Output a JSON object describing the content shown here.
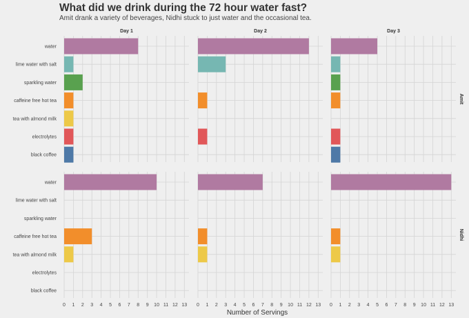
{
  "chart_data": {
    "type": "bar",
    "orientation": "horizontal",
    "title": "What did we drink during the 72 hour water fast?",
    "subtitle": "Amit drank a variety of beverages, Nidhi stuck to just water and the occasional tea.",
    "xlabel": "Number of Servings",
    "xlim": [
      0,
      13.5
    ],
    "x_ticks": [
      0,
      1,
      2,
      3,
      4,
      5,
      6,
      7,
      8,
      9,
      10,
      11,
      12,
      13
    ],
    "grid": true,
    "legend": "none",
    "categories": [
      "water",
      "lime water with salt",
      "sparkling water",
      "caffeine free hot tea",
      "tea with almond milk",
      "electrolytes",
      "black coffee"
    ],
    "colors": {
      "water": "#b07aa1",
      "lime water with salt": "#76b7b2",
      "sparkling water": "#59a14f",
      "caffeine free hot tea": "#f28e2b",
      "tea with almond milk": "#edc948",
      "electrolytes": "#e15759",
      "black coffee": "#4e79a7"
    },
    "columns": [
      "Day 1",
      "Day 2",
      "Day 3"
    ],
    "rows": [
      "Amit",
      "Nidhi"
    ],
    "panels": [
      {
        "row": "Amit",
        "column": "Day 1",
        "values": [
          8,
          1,
          2,
          1,
          1,
          1,
          1
        ]
      },
      {
        "row": "Amit",
        "column": "Day 2",
        "values": [
          12,
          3,
          0,
          1,
          0,
          1,
          0
        ]
      },
      {
        "row": "Amit",
        "column": "Day 3",
        "values": [
          5,
          1,
          1,
          1,
          0,
          1,
          1
        ]
      },
      {
        "row": "Nidhi",
        "column": "Day 1",
        "values": [
          10,
          0,
          0,
          3,
          1,
          0,
          0
        ]
      },
      {
        "row": "Nidhi",
        "column": "Day 2",
        "values": [
          7,
          0,
          0,
          1,
          1,
          0,
          0
        ]
      },
      {
        "row": "Nidhi",
        "column": "Day 3",
        "values": [
          13,
          0,
          0,
          1,
          1,
          0,
          0
        ]
      }
    ]
  }
}
